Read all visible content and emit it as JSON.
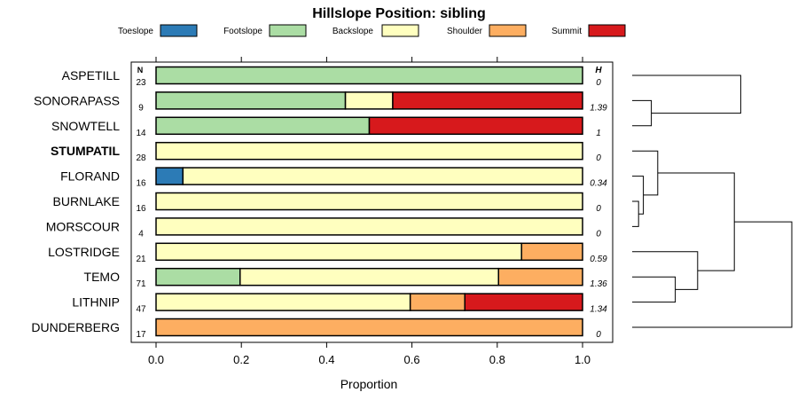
{
  "chart_data": {
    "type": "bar",
    "orientation": "horizontal",
    "stacked": true,
    "title": "Hillslope Position: sibling",
    "xlabel": "Proportion",
    "ylabel": "",
    "xlim": [
      0,
      1
    ],
    "x_ticks": [
      "0.0",
      "0.2",
      "0.4",
      "0.6",
      "0.8",
      "1.0"
    ],
    "n_header": "N",
    "h_header": "H",
    "legend_position": "top",
    "series": [
      {
        "name": "Toeslope",
        "color": "#2c7bb6"
      },
      {
        "name": "Footslope",
        "color": "#abdda4"
      },
      {
        "name": "Backslope",
        "color": "#ffffbf"
      },
      {
        "name": "Shoulder",
        "color": "#fdae61"
      },
      {
        "name": "Summit",
        "color": "#d7191c"
      }
    ],
    "categories": [
      "ASPETILL",
      "SONORAPASS",
      "SNOWTELL",
      "STUMPATIL",
      "FLORAND",
      "BURNLAKE",
      "MORSCOUR",
      "LOSTRIDGE",
      "TEMO",
      "LITHNIP",
      "DUNDERBERG"
    ],
    "highlighted": "STUMPATIL",
    "rows": [
      {
        "name": "ASPETILL",
        "n": "23",
        "h": "0",
        "values": [
          0,
          1.0,
          0,
          0,
          0
        ]
      },
      {
        "name": "SONORAPASS",
        "n": "9",
        "h": "1.39",
        "values": [
          0,
          0.444,
          0.111,
          0,
          0.445
        ]
      },
      {
        "name": "SNOWTELL",
        "n": "14",
        "h": "1",
        "values": [
          0,
          0.5,
          0,
          0,
          0.5
        ]
      },
      {
        "name": "STUMPATIL",
        "n": "28",
        "h": "0",
        "values": [
          0,
          0,
          1.0,
          0,
          0
        ]
      },
      {
        "name": "FLORAND",
        "n": "16",
        "h": "0.34",
        "values": [
          0.063,
          0,
          0.937,
          0,
          0
        ]
      },
      {
        "name": "BURNLAKE",
        "n": "16",
        "h": "0",
        "values": [
          0,
          0,
          1.0,
          0,
          0
        ]
      },
      {
        "name": "MORSCOUR",
        "n": "4",
        "h": "0",
        "values": [
          0,
          0,
          1.0,
          0,
          0
        ]
      },
      {
        "name": "LOSTRIDGE",
        "n": "21",
        "h": "0.59",
        "values": [
          0,
          0,
          0.857,
          0.143,
          0
        ]
      },
      {
        "name": "TEMO",
        "n": "71",
        "h": "1.36",
        "values": [
          0,
          0.197,
          0.606,
          0.197,
          0
        ]
      },
      {
        "name": "LITHNIP",
        "n": "47",
        "h": "1.34",
        "values": [
          0,
          0,
          0.596,
          0.128,
          0.276
        ]
      },
      {
        "name": "DUNDERBERG",
        "n": "17",
        "h": "0",
        "values": [
          0,
          0,
          0,
          1.0,
          0
        ]
      }
    ],
    "dendrogram": {
      "heights": {
        "sonora_snowtell": 0.88,
        "aspetill_sono": 0.32,
        "burn_mors": 0.96,
        "florand_bm": 0.93,
        "stump_fbm": 0.84,
        "temo_lith": 0.73,
        "upper_mid": 0.59,
        "lostridge_mid": 0.59,
        "mid_dund": 0.0,
        "root": 0.0
      }
    }
  }
}
